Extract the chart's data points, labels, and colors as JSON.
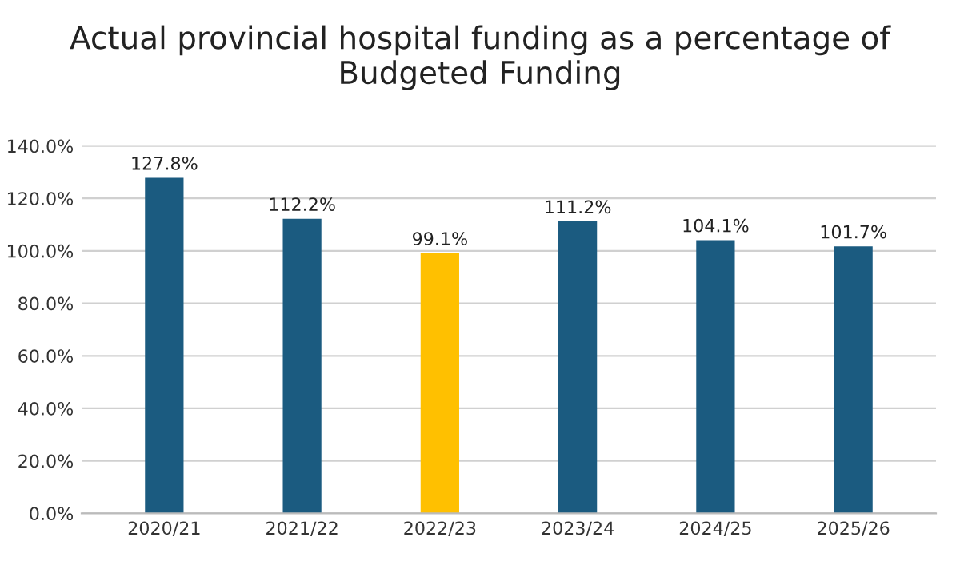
{
  "chart_data": {
    "type": "bar",
    "title": "Actual provincial hospital funding as a percentage of Budgeted Funding",
    "categories": [
      "2020/21",
      "2021/22",
      "2022/23",
      "2023/24",
      "2024/25",
      "2025/26"
    ],
    "values": [
      127.8,
      112.2,
      99.1,
      111.2,
      104.1,
      101.7
    ],
    "colors": [
      "#1b5b80",
      "#1b5b80",
      "#ffc000",
      "#1b5b80",
      "#1b5b80",
      "#1b5b80"
    ],
    "value_labels": [
      "127.8%",
      "112.2%",
      "99.1%",
      "111.2%",
      "104.1%",
      "101.7%"
    ],
    "ylim": [
      0,
      140
    ],
    "yticks": [
      {
        "value": 0,
        "label": "0.0%"
      },
      {
        "value": 20,
        "label": "20.0%"
      },
      {
        "value": 40,
        "label": "40.0%"
      },
      {
        "value": 60,
        "label": "60.0%"
      },
      {
        "value": 80,
        "label": "80.0%"
      },
      {
        "value": 100,
        "label": "100.0%"
      },
      {
        "value": 120,
        "label": "120.0%"
      },
      {
        "value": 140,
        "label": "140.0%"
      }
    ],
    "grid": "y"
  }
}
